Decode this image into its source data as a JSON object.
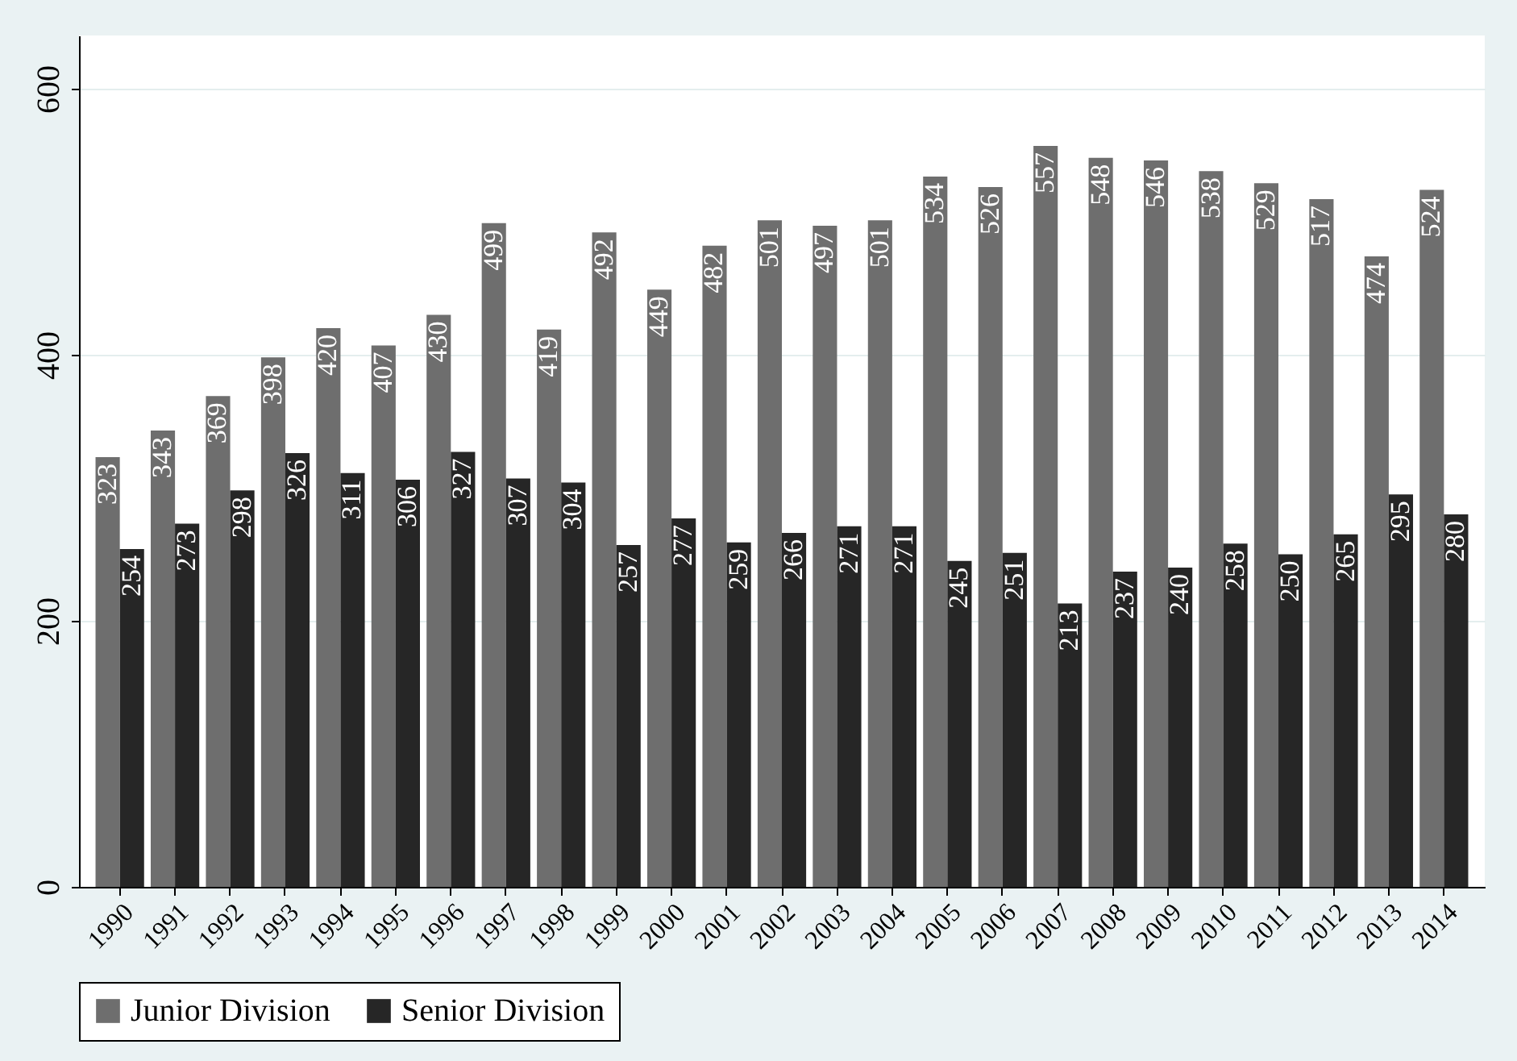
{
  "chart_data": {
    "type": "bar",
    "categories": [
      "1990",
      "1991",
      "1992",
      "1993",
      "1994",
      "1995",
      "1996",
      "1997",
      "1998",
      "1999",
      "2000",
      "2001",
      "2002",
      "2003",
      "2004",
      "2005",
      "2006",
      "2007",
      "2008",
      "2009",
      "2010",
      "2011",
      "2012",
      "2013",
      "2014"
    ],
    "series": [
      {
        "name": "Junior Division",
        "color": "#6e6e6e",
        "values": [
          323,
          343,
          369,
          398,
          420,
          407,
          430,
          499,
          419,
          492,
          449,
          482,
          501,
          497,
          501,
          534,
          526,
          557,
          548,
          546,
          538,
          529,
          517,
          474,
          524
        ]
      },
      {
        "name": "Senior Division",
        "color": "#262626",
        "values": [
          254,
          273,
          298,
          326,
          311,
          306,
          327,
          307,
          304,
          257,
          277,
          259,
          266,
          271,
          271,
          245,
          251,
          213,
          237,
          240,
          258,
          250,
          265,
          295,
          280
        ]
      }
    ],
    "ylim": [
      0,
      640
    ],
    "yticks": [
      0,
      200,
      400,
      600
    ],
    "grid": "y",
    "legend": "bottom",
    "data_labels": true
  }
}
